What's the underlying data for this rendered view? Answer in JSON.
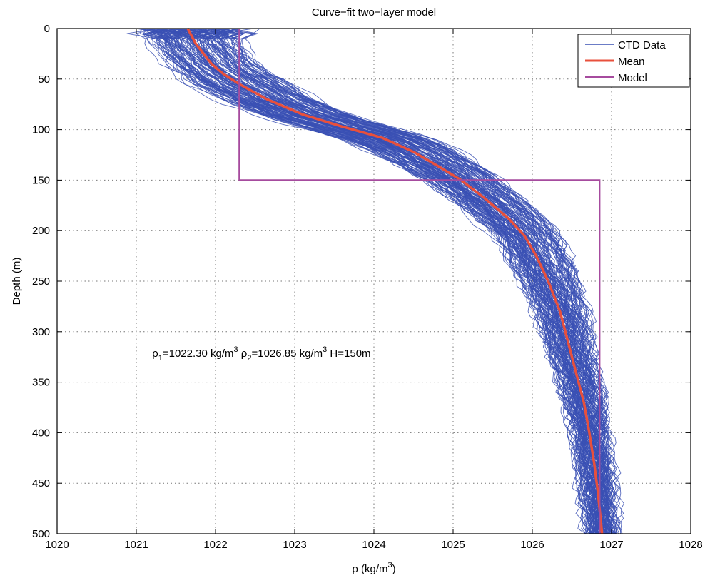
{
  "chart_data": {
    "type": "line",
    "title": "Curve−fit two−layer model",
    "xlabel": "ρ (kg/m³)",
    "xlabel_parts": {
      "main": "ρ (kg/m",
      "sup": "3",
      "close": ")"
    },
    "ylabel": "Depth (m)",
    "xlim": [
      1020,
      1028
    ],
    "ylim": [
      0,
      500
    ],
    "y_reversed": true,
    "grid": true,
    "legend_position": "top-right",
    "x_ticks": [
      "1020",
      "1021",
      "1022",
      "1023",
      "1024",
      "1025",
      "1026",
      "1027",
      "1028"
    ],
    "y_ticks": [
      "0",
      "50",
      "100",
      "150",
      "200",
      "250",
      "300",
      "350",
      "400",
      "450",
      "500"
    ],
    "series": [
      {
        "name": "CTD Data",
        "color": "#3a50b4",
        "note": "many individual profiles scattered around the mean"
      },
      {
        "name": "Mean",
        "color": "#e8503c",
        "points": [
          [
            1021.65,
            0
          ],
          [
            1021.75,
            15
          ],
          [
            1021.85,
            25
          ],
          [
            1021.95,
            35
          ],
          [
            1022.1,
            45
          ],
          [
            1022.3,
            55
          ],
          [
            1022.65,
            70
          ],
          [
            1023.1,
            85
          ],
          [
            1023.6,
            97
          ],
          [
            1024.1,
            108
          ],
          [
            1024.5,
            122
          ],
          [
            1024.85,
            138
          ],
          [
            1025.1,
            150
          ],
          [
            1025.4,
            168
          ],
          [
            1025.7,
            188
          ],
          [
            1025.9,
            205
          ],
          [
            1026.05,
            225
          ],
          [
            1026.2,
            250
          ],
          [
            1026.35,
            280
          ],
          [
            1026.45,
            310
          ],
          [
            1026.55,
            340
          ],
          [
            1026.65,
            370
          ],
          [
            1026.72,
            400
          ],
          [
            1026.78,
            430
          ],
          [
            1026.83,
            460
          ],
          [
            1026.88,
            500
          ]
        ]
      },
      {
        "name": "Model",
        "color": "#a64b9e",
        "rho1": 1022.3,
        "rho2": 1026.85,
        "H": 150
      }
    ],
    "annotation": {
      "parts": [
        "ρ",
        "1",
        "=1022.30 kg/m",
        "3",
        " ρ",
        "2",
        "=1026.85 kg/m",
        "3",
        " H=150m"
      ],
      "x": 1021.2,
      "y": 325
    }
  }
}
